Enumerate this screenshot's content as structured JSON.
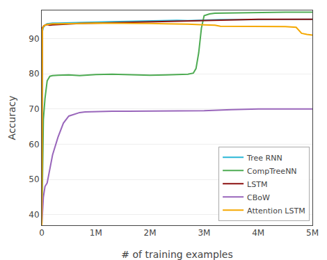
{
  "chart_data": {
    "type": "line",
    "xlabel": "# of training examples",
    "ylabel": "Accuracy",
    "xlim": [
      0,
      5000000
    ],
    "ylim": [
      37,
      98
    ],
    "xticks": [
      0,
      {
        "value": 1000000,
        "label": "1M"
      },
      {
        "value": 2000000,
        "label": "2M"
      },
      {
        "value": 3000000,
        "label": "3M"
      },
      {
        "value": 4000000,
        "label": "4M"
      },
      {
        "value": 5000000,
        "label": "5M"
      }
    ],
    "yticks": [
      40,
      50,
      60,
      70,
      80,
      90
    ],
    "grid": "y",
    "legend": "lower right",
    "series": [
      {
        "name": "Tree RNN",
        "color": "#29b6d6",
        "x": [
          0,
          10000,
          30000,
          60000,
          100000,
          150000,
          200000,
          300000,
          500000,
          700000,
          1000000,
          1300000,
          1600000,
          2000000,
          2300000,
          2500000,
          2700000,
          3000000,
          3300000,
          3600000,
          4000000,
          4500000,
          5000000
        ],
        "values": [
          37,
          92,
          93.2,
          93.8,
          94.2,
          94.3,
          94.4,
          94.4,
          94.5,
          94.6,
          94.7,
          94.8,
          94.9,
          95.0,
          95.1,
          95.2,
          95.1,
          95.3,
          95.4,
          95.4,
          95.4,
          95.5,
          95.5
        ]
      },
      {
        "name": "CompTreeNN",
        "color": "#4dab52",
        "x": [
          0,
          10000,
          30000,
          60000,
          100000,
          150000,
          200000,
          300000,
          500000,
          700000,
          1000000,
          1300000,
          1600000,
          2000000,
          2300000,
          2500000,
          2700000,
          2800000,
          2850000,
          2900000,
          2950000,
          3000000,
          3100000,
          3200000,
          3500000,
          4000000,
          4500000,
          5000000
        ],
        "values": [
          37,
          50,
          67,
          73,
          78,
          79.3,
          79.5,
          79.6,
          79.7,
          79.5,
          79.8,
          79.9,
          79.8,
          79.6,
          79.7,
          79.8,
          79.9,
          80.2,
          81.5,
          86,
          93,
          96.5,
          97.0,
          97.2,
          97.3,
          97.4,
          97.5,
          97.5
        ]
      },
      {
        "name": "LSTM",
        "color": "#8b1010",
        "x": [
          0,
          10000,
          30000,
          60000,
          100000,
          150000,
          200000,
          300000,
          500000,
          700000,
          1000000,
          1500000,
          2000000,
          2500000,
          3000000,
          3300000,
          3600000,
          4000000,
          4500000,
          5000000
        ],
        "values": [
          37,
          93.0,
          93.5,
          93.8,
          94.0,
          93.8,
          93.9,
          94.0,
          94.2,
          94.3,
          94.4,
          94.6,
          94.8,
          95.0,
          95.2,
          95.3,
          95.4,
          95.5,
          95.5,
          95.5
        ]
      },
      {
        "name": "CBoW",
        "color": "#9966bb",
        "x": [
          0,
          10000,
          30000,
          60000,
          100000,
          150000,
          200000,
          300000,
          400000,
          500000,
          600000,
          700000,
          800000,
          1000000,
          1300000,
          1600000,
          2000000,
          2500000,
          3000000,
          3500000,
          4000000,
          4500000,
          5000000
        ],
        "values": [
          37,
          40,
          45,
          48,
          49,
          53,
          57,
          62,
          66,
          68,
          68.5,
          69,
          69.2,
          69.3,
          69.4,
          69.4,
          69.4,
          69.5,
          69.5,
          69.8,
          70.0,
          70.0,
          70.0
        ]
      },
      {
        "name": "Attention LSTM",
        "color": "#f5a800",
        "x": [
          0,
          10000,
          30000,
          60000,
          100000,
          150000,
          200000,
          300000,
          500000,
          700000,
          1000000,
          1300000,
          1600000,
          2000000,
          2300000,
          2500000,
          2700000,
          3000000,
          3200000,
          3300000,
          3500000,
          3800000,
          4000000,
          4200000,
          4500000,
          4700000,
          4800000,
          4900000,
          5000000
        ],
        "values": [
          37,
          92.5,
          93.5,
          93.8,
          94.0,
          94.1,
          94.2,
          94.2,
          94.3,
          94.3,
          94.4,
          94.4,
          94.4,
          94.3,
          94.2,
          94.2,
          94.1,
          93.9,
          93.8,
          93.5,
          93.5,
          93.5,
          93.5,
          93.5,
          93.4,
          93.2,
          91.5,
          91.2,
          91.0
        ]
      }
    ]
  }
}
